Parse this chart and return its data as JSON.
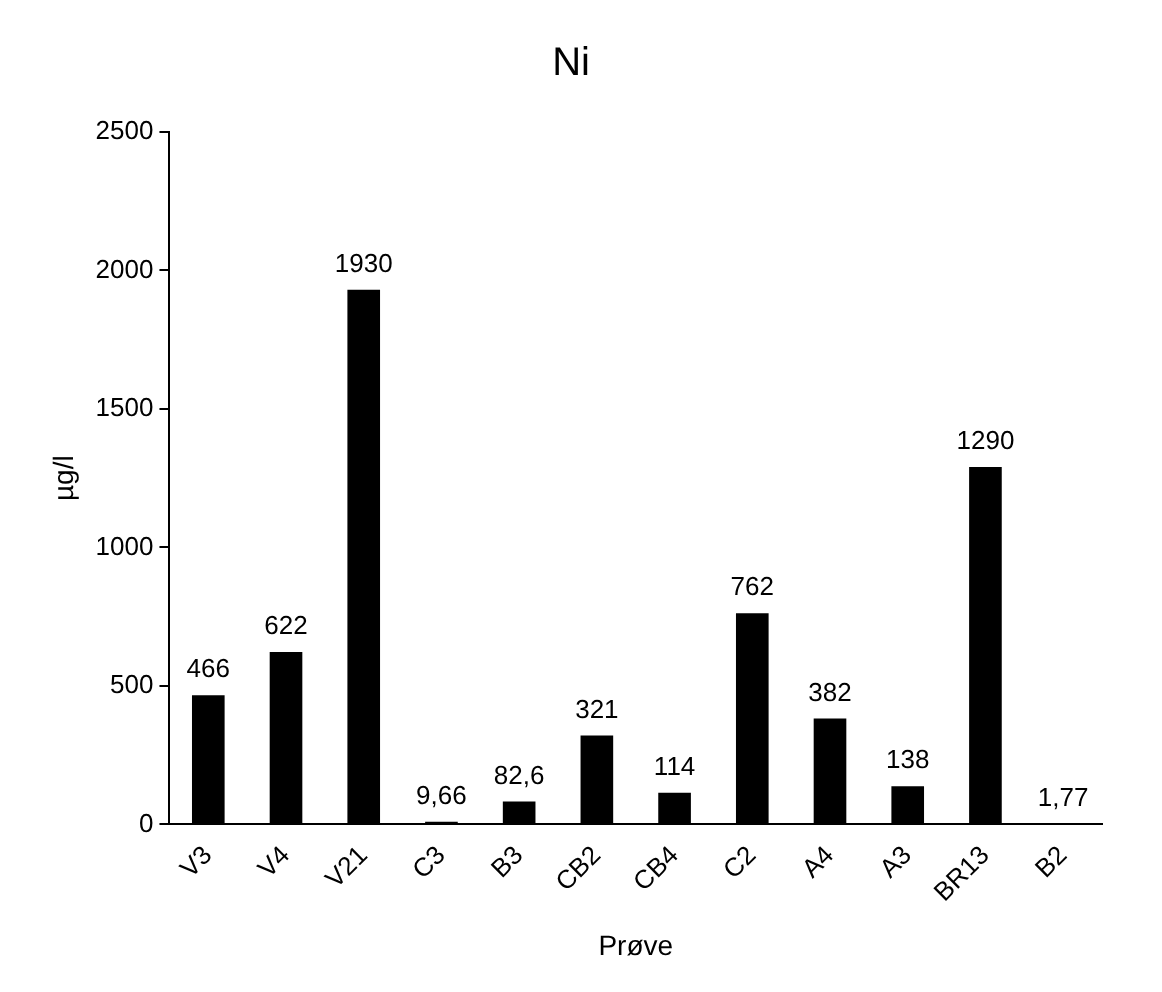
{
  "chart_data": {
    "type": "bar",
    "title": "Ni",
    "xlabel": "Prøve",
    "ylabel": "µg/l",
    "categories": [
      "V3",
      "V4",
      "V21",
      "C3",
      "B3",
      "CB2",
      "CB4",
      "C2",
      "A4",
      "A3",
      "BR13",
      "B2"
    ],
    "values": [
      466,
      622,
      1930,
      9.66,
      82.6,
      321,
      114,
      762,
      382,
      138,
      1290,
      1.77
    ],
    "value_labels": [
      "466",
      "622",
      "1930",
      "9,66",
      "82,6",
      "321",
      "114",
      "762",
      "382",
      "138",
      "1290",
      "1,77"
    ],
    "color": "#000000",
    "ylim": [
      0,
      2500
    ],
    "yticks": [
      0,
      500,
      1000,
      1500,
      2000,
      2500
    ],
    "grid": false,
    "legend": false
  }
}
